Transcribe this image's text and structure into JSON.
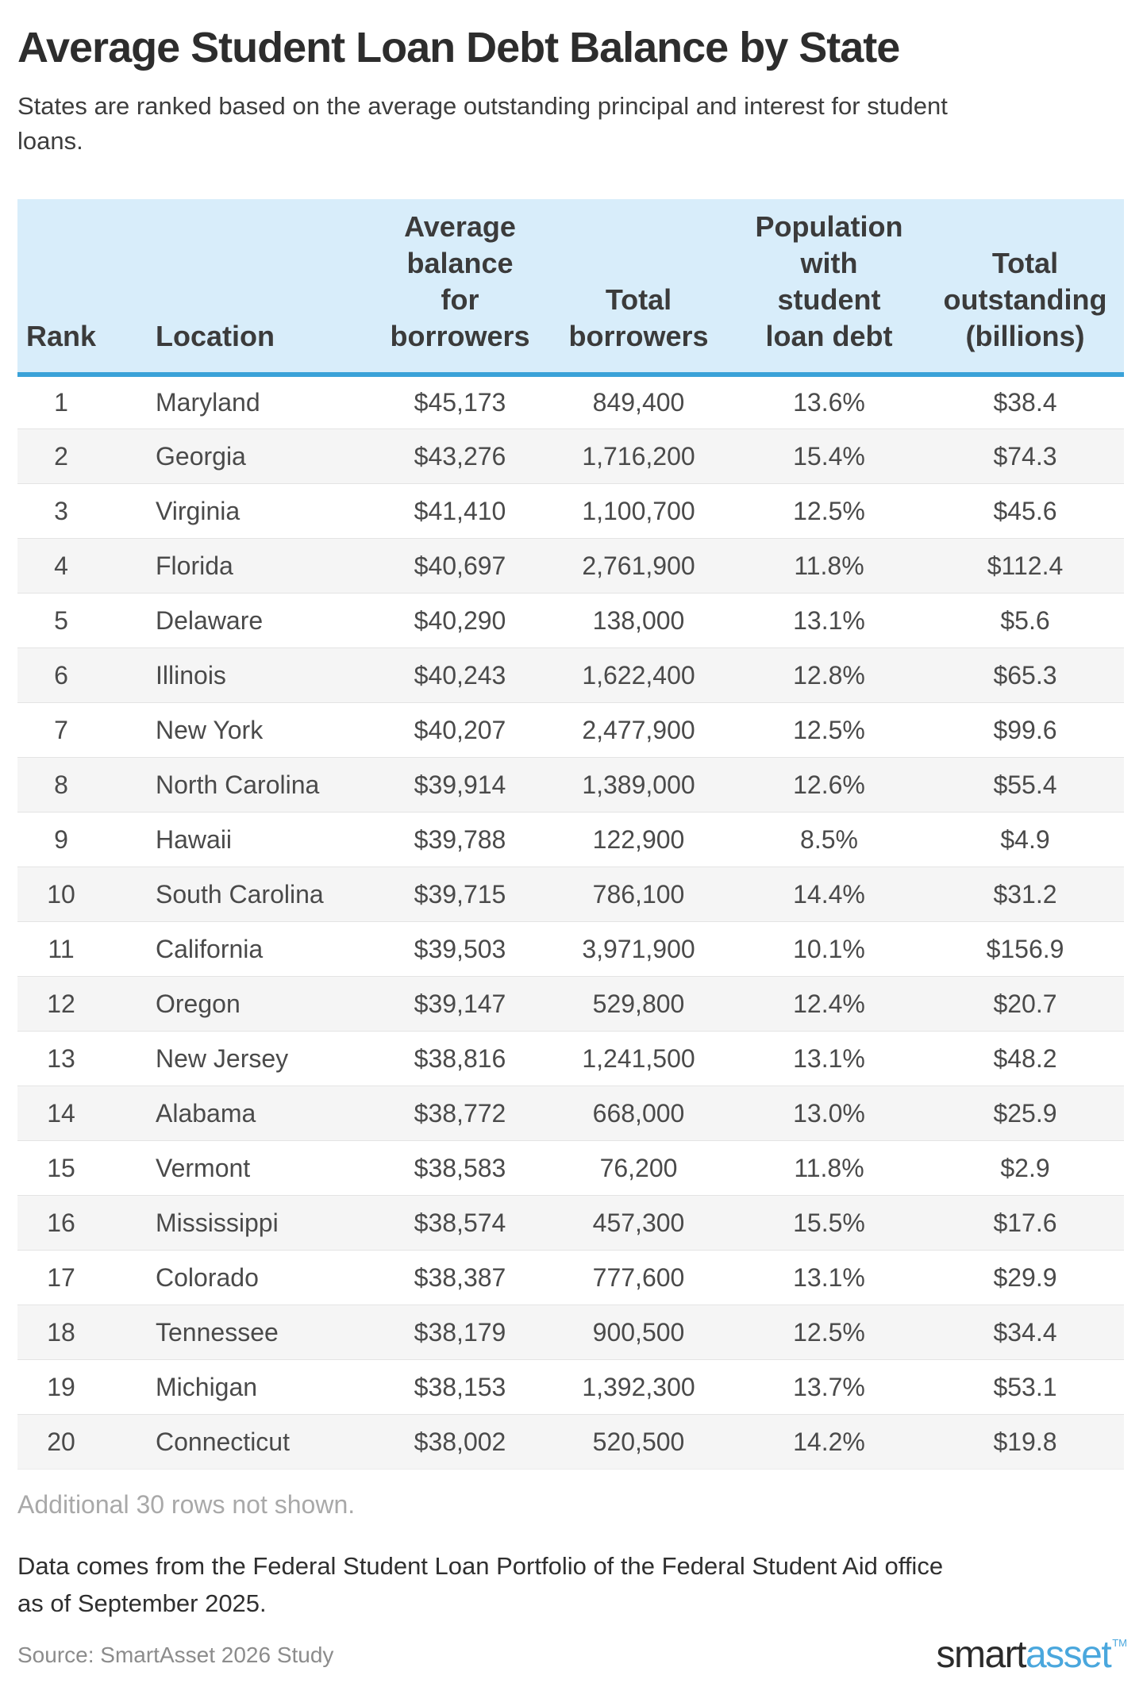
{
  "page": {
    "title": "Average Student Loan Debt Balance by State",
    "subtitle": "States are ranked based on the average outstanding principal and interest for student\nloans.",
    "note": "Additional 30 rows not shown.",
    "footnote": "Data comes from the Federal Student Loan Portfolio of the Federal Student Aid office\nas of September 2025.",
    "source": "Source: SmartAsset 2026 Study",
    "logo": {
      "smart": "smart",
      "asset": "asset",
      "tm": "TM"
    }
  },
  "colors": {
    "header_bg": "#d8edfa",
    "header_border_blue": "#3aa2d8",
    "row_alt_bg": "#f5f5f5",
    "row_divider": "#e4e4e4",
    "note_text": "#a9a9a9",
    "body_text": "#4a4a4a",
    "logo_dark": "#2b2b2b",
    "logo_blue": "#4aa7dd"
  },
  "chart_data": {
    "type": "table",
    "title": "Average Student Loan Debt Balance by State",
    "columns": [
      "Rank",
      "Location",
      "Average balance for borrowers",
      "Total borrowers",
      "Population with student loan debt",
      "Total outstanding (billions)"
    ],
    "header_display": [
      "Rank",
      "Location",
      "Average\nbalance\nfor\nborrowers",
      "Total\nborrowers",
      "Population\nwith\nstudent\nloan debt",
      "Total\noutstanding\n(billions)"
    ],
    "rows": [
      [
        "1",
        "Maryland",
        "$45,173",
        "849,400",
        "13.6%",
        "$38.4"
      ],
      [
        "2",
        "Georgia",
        "$43,276",
        "1,716,200",
        "15.4%",
        "$74.3"
      ],
      [
        "3",
        "Virginia",
        "$41,410",
        "1,100,700",
        "12.5%",
        "$45.6"
      ],
      [
        "4",
        "Florida",
        "$40,697",
        "2,761,900",
        "11.8%",
        "$112.4"
      ],
      [
        "5",
        "Delaware",
        "$40,290",
        "138,000",
        "13.1%",
        "$5.6"
      ],
      [
        "6",
        "Illinois",
        "$40,243",
        "1,622,400",
        "12.8%",
        "$65.3"
      ],
      [
        "7",
        "New York",
        "$40,207",
        "2,477,900",
        "12.5%",
        "$99.6"
      ],
      [
        "8",
        "North Carolina",
        "$39,914",
        "1,389,000",
        "12.6%",
        "$55.4"
      ],
      [
        "9",
        "Hawaii",
        "$39,788",
        "122,900",
        "8.5%",
        "$4.9"
      ],
      [
        "10",
        "South Carolina",
        "$39,715",
        "786,100",
        "14.4%",
        "$31.2"
      ],
      [
        "11",
        "California",
        "$39,503",
        "3,971,900",
        "10.1%",
        "$156.9"
      ],
      [
        "12",
        "Oregon",
        "$39,147",
        "529,800",
        "12.4%",
        "$20.7"
      ],
      [
        "13",
        "New Jersey",
        "$38,816",
        "1,241,500",
        "13.1%",
        "$48.2"
      ],
      [
        "14",
        "Alabama",
        "$38,772",
        "668,000",
        "13.0%",
        "$25.9"
      ],
      [
        "15",
        "Vermont",
        "$38,583",
        "76,200",
        "11.8%",
        "$2.9"
      ],
      [
        "16",
        "Mississippi",
        "$38,574",
        "457,300",
        "15.5%",
        "$17.6"
      ],
      [
        "17",
        "Colorado",
        "$38,387",
        "777,600",
        "13.1%",
        "$29.9"
      ],
      [
        "18",
        "Tennessee",
        "$38,179",
        "900,500",
        "12.5%",
        "$34.4"
      ],
      [
        "19",
        "Michigan",
        "$38,153",
        "1,392,300",
        "13.7%",
        "$53.1"
      ],
      [
        "20",
        "Connecticut",
        "$38,002",
        "520,500",
        "14.2%",
        "$19.8"
      ]
    ],
    "cell_names": [
      "rank-cell",
      "location-cell",
      "avg-balance-cell",
      "total-borrowers-cell",
      "population-pct-cell",
      "total-outstanding-cell"
    ]
  }
}
